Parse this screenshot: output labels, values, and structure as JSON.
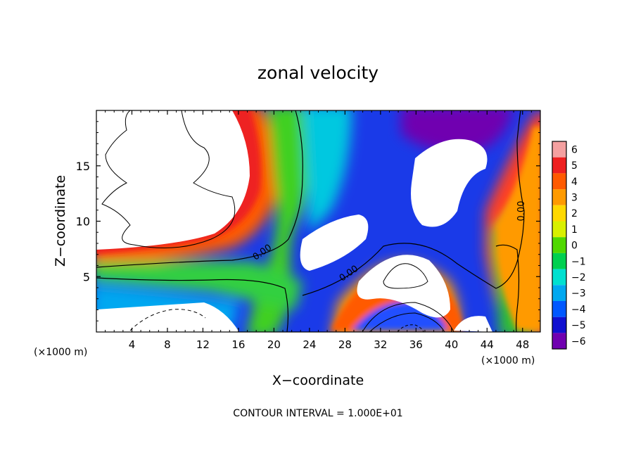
{
  "chart_data": {
    "type": "heatmap",
    "title": "zonal velocity",
    "xlabel": "X−coordinate",
    "ylabel": "Z−coordinate",
    "xlim": [
      0,
      50
    ],
    "ylim": [
      0,
      20
    ],
    "x_unit_left": "(×1000 m)",
    "x_unit_right": "(×1000 m)",
    "x_ticks": [
      4,
      8,
      12,
      16,
      20,
      24,
      28,
      32,
      36,
      40,
      44,
      48
    ],
    "x_tick_labels": [
      "4",
      "8",
      "12",
      "16",
      "20",
      "24",
      "28",
      "32",
      "36",
      "40",
      "44",
      "48"
    ],
    "y_ticks": [
      5,
      10,
      15
    ],
    "y_tick_labels": [
      "5",
      "10",
      "15"
    ],
    "colorbar": {
      "levels": [
        6,
        5,
        4,
        3,
        2,
        1,
        0,
        -1,
        -2,
        -3,
        -4,
        -5,
        -6
      ],
      "level_labels": [
        "6",
        "5",
        "4",
        "3",
        "2",
        "1",
        "0",
        "−1",
        "−2",
        "−3",
        "−4",
        "−5",
        "−6"
      ],
      "colors": [
        "#f4a0a0",
        "#ee2020",
        "#ff5a00",
        "#ff9a00",
        "#ffd800",
        "#d8f000",
        "#50d800",
        "#00d050",
        "#00e0d0",
        "#00a8f0",
        "#0058ff",
        "#1010d0",
        "#7000b0"
      ]
    },
    "contour_labels": [
      "0.00",
      "0.00",
      "0.00"
    ],
    "footer": "CONTOUR INTERVAL = 1.000E+01"
  }
}
